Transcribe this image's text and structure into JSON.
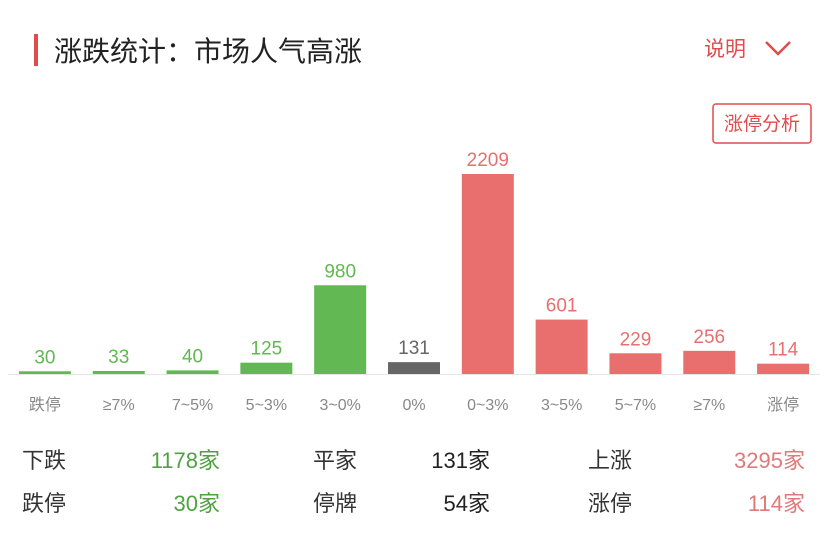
{
  "header": {
    "title": "涨跌统计：市场人气高涨",
    "help": "说明",
    "button": "涨停分析"
  },
  "chart_data": {
    "type": "bar",
    "categories": [
      "跌停",
      "≥7%",
      "7~5%",
      "5~3%",
      "3~0%",
      "0%",
      "0~3%",
      "3~5%",
      "5~7%",
      "≥7%",
      "涨停"
    ],
    "values": [
      30,
      33,
      40,
      125,
      980,
      131,
      2209,
      601,
      229,
      256,
      114
    ],
    "colors": [
      "#62b852",
      "#62b852",
      "#62b852",
      "#62b852",
      "#62b852",
      "#666666",
      "#e96f6f",
      "#e96f6f",
      "#e96f6f",
      "#e96f6f",
      "#e96f6f"
    ]
  },
  "summary": {
    "rows": [
      [
        [
          "下跌",
          "1178家"
        ],
        [
          "平家",
          "131家"
        ],
        [
          "上涨",
          "3295家"
        ]
      ],
      [
        [
          "跌停",
          "30家"
        ],
        [
          "停牌",
          "54家"
        ],
        [
          "涨停",
          "114家"
        ]
      ]
    ]
  }
}
